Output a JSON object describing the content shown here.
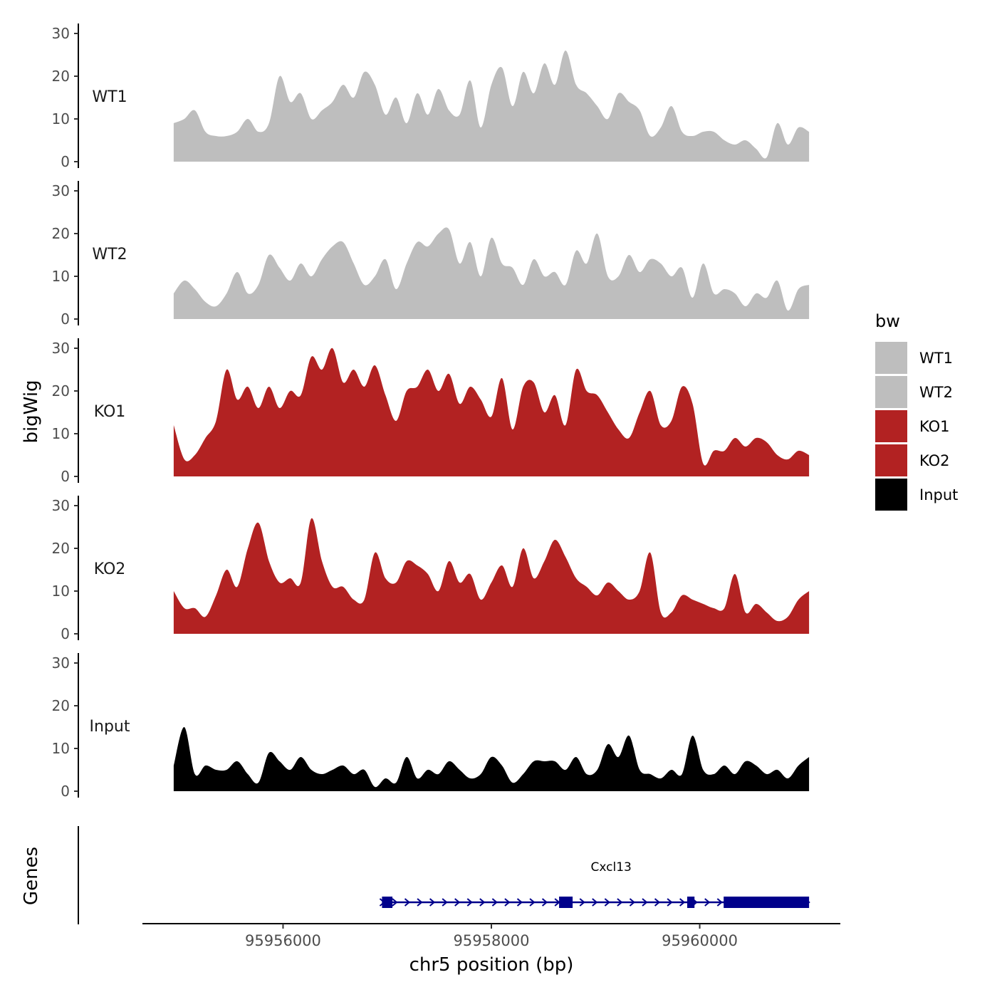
{
  "chart_data": {
    "type": "area",
    "ylabel": "bigWig",
    "xlabel": "chr5 position (bp)",
    "gene_track_label": "Genes",
    "legend_title": "bw",
    "ylim": [
      0,
      32
    ],
    "y_ticks": [
      "0",
      "10",
      "20",
      "30"
    ],
    "xlim": [
      95954650,
      95961350
    ],
    "x_ticks": [
      {
        "value": 95956000,
        "label": "95956000"
      },
      {
        "value": 95958000,
        "label": "95958000"
      },
      {
        "value": 95960000,
        "label": "95960000"
      }
    ],
    "colors": {
      "WT": "#bebebe",
      "KO": "#b22222",
      "Input": "#000000",
      "gene": "#00008b"
    },
    "series": [
      {
        "name": "WT1",
        "color": "#bebebe",
        "start": 95954950,
        "end": 95961050,
        "values": [
          9,
          10,
          12,
          7,
          6,
          6,
          7,
          10,
          7,
          9,
          20,
          14,
          16,
          10,
          12,
          14,
          18,
          15,
          21,
          18,
          11,
          15,
          9,
          16,
          11,
          17,
          12,
          11,
          19,
          8,
          18,
          22,
          13,
          21,
          16,
          23,
          18,
          26,
          18,
          16,
          13,
          10,
          16,
          14,
          12,
          6,
          8,
          13,
          7,
          6,
          7,
          7,
          5,
          4,
          5,
          3,
          1,
          9,
          4,
          8,
          7
        ]
      },
      {
        "name": "WT2",
        "color": "#bebebe",
        "start": 95954950,
        "end": 95961050,
        "values": [
          6,
          9,
          7,
          4,
          3,
          6,
          11,
          6,
          8,
          15,
          12,
          9,
          13,
          10,
          14,
          17,
          18,
          13,
          8,
          10,
          14,
          7,
          13,
          18,
          17,
          20,
          21,
          13,
          18,
          10,
          19,
          13,
          12,
          8,
          14,
          10,
          11,
          8,
          16,
          13,
          20,
          10,
          10,
          15,
          11,
          14,
          13,
          10,
          12,
          5,
          13,
          6,
          7,
          6,
          3,
          6,
          5,
          9,
          2,
          7,
          8
        ]
      },
      {
        "name": "KO1",
        "color": "#b22222",
        "start": 95954950,
        "end": 95961050,
        "values": [
          12,
          4,
          5,
          9,
          13,
          25,
          18,
          21,
          16,
          21,
          16,
          20,
          19,
          28,
          25,
          30,
          22,
          25,
          21,
          26,
          19,
          13,
          20,
          21,
          25,
          20,
          24,
          17,
          21,
          18,
          14,
          23,
          11,
          21,
          22,
          15,
          19,
          12,
          25,
          20,
          19,
          15,
          11,
          9,
          15,
          20,
          12,
          13,
          21,
          17,
          3,
          6,
          6,
          9,
          7,
          9,
          8,
          5,
          4,
          6,
          5
        ]
      },
      {
        "name": "KO2",
        "color": "#b22222",
        "start": 95954950,
        "end": 95961050,
        "values": [
          10,
          6,
          6,
          4,
          9,
          15,
          11,
          20,
          26,
          17,
          12,
          13,
          12,
          27,
          17,
          11,
          11,
          8,
          8,
          19,
          13,
          12,
          17,
          16,
          14,
          10,
          17,
          12,
          14,
          8,
          12,
          16,
          11,
          20,
          13,
          17,
          22,
          18,
          13,
          11,
          9,
          12,
          10,
          8,
          10,
          19,
          5,
          5,
          9,
          8,
          7,
          6,
          6,
          14,
          5,
          7,
          5,
          3,
          4,
          8,
          10
        ]
      },
      {
        "name": "Input",
        "color": "#000000",
        "start": 95954950,
        "end": 95961050,
        "values": [
          6,
          15,
          4,
          6,
          5,
          5,
          7,
          4,
          2,
          9,
          7,
          5,
          8,
          5,
          4,
          5,
          6,
          4,
          5,
          1,
          3,
          2,
          8,
          3,
          5,
          4,
          7,
          5,
          3,
          4,
          8,
          6,
          2,
          4,
          7,
          7,
          7,
          5,
          8,
          4,
          5,
          11,
          8,
          13,
          5,
          4,
          3,
          5,
          4,
          13,
          5,
          4,
          6,
          4,
          7,
          6,
          4,
          5,
          3,
          6,
          8
        ]
      }
    ],
    "track_labels": [
      "WT1",
      "WT2",
      "KO1",
      "KO2",
      "Input"
    ],
    "legend": [
      {
        "label": "WT1",
        "color": "#bebebe"
      },
      {
        "label": "WT2",
        "color": "#bebebe"
      },
      {
        "label": "KO1",
        "color": "#b22222"
      },
      {
        "label": "KO2",
        "color": "#b22222"
      },
      {
        "label": "Input",
        "color": "#000000"
      }
    ],
    "gene": {
      "name": "Cxcl13",
      "strand": "+",
      "start": 95956950,
      "end": 95961050,
      "exons": [
        [
          95956950,
          95957050
        ],
        [
          95958650,
          95958780
        ],
        [
          95959880,
          95959950
        ],
        [
          95960230,
          95961050
        ]
      ]
    }
  }
}
